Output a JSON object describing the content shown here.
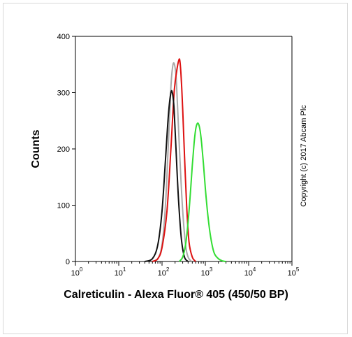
{
  "chart_data": {
    "type": "line",
    "title": "",
    "xlabel": "Calreticulin - Alexa Fluor® 405 (450/50 BP)",
    "ylabel": "Counts",
    "x_scale": "log",
    "xlim": [
      1,
      100000
    ],
    "ylim": [
      0,
      400
    ],
    "x_ticks": [
      {
        "value": 1,
        "base": "10",
        "exp": "0"
      },
      {
        "value": 10,
        "base": "10",
        "exp": "1"
      },
      {
        "value": 100,
        "base": "10",
        "exp": "2"
      },
      {
        "value": 1000,
        "base": "10",
        "exp": "3"
      },
      {
        "value": 10000,
        "base": "10",
        "exp": "4"
      },
      {
        "value": 100000,
        "base": "10",
        "exp": "5"
      }
    ],
    "y_ticks": [
      "0",
      "100",
      "200",
      "300",
      "400"
    ],
    "y_tick_values": [
      0,
      100,
      200,
      300,
      400
    ],
    "grid": false,
    "legend": "none",
    "series": [
      {
        "color": "#aaaaaa",
        "x": [
          60,
          80,
          100,
          120,
          140,
          160,
          175,
          190,
          210,
          230,
          260,
          300,
          350,
          400,
          480
        ],
        "y": [
          0,
          5,
          30,
          100,
          210,
          310,
          345,
          352,
          330,
          270,
          180,
          90,
          30,
          8,
          0
        ]
      },
      {
        "color": "#dd1111",
        "x": [
          60,
          80,
          100,
          130,
          160,
          190,
          220,
          245,
          260,
          280,
          300,
          330,
          370,
          420,
          500,
          600
        ],
        "y": [
          0,
          5,
          25,
          90,
          200,
          300,
          340,
          358,
          355,
          320,
          270,
          190,
          100,
          35,
          8,
          0
        ]
      },
      {
        "color": "#111111",
        "x": [
          40,
          60,
          80,
          100,
          120,
          140,
          160,
          175,
          190,
          210,
          240,
          280,
          330,
          400
        ],
        "y": [
          0,
          5,
          30,
          90,
          180,
          260,
          300,
          298,
          270,
          200,
          110,
          40,
          8,
          0
        ]
      },
      {
        "color": "#33dd33",
        "x": [
          250,
          300,
          350,
          400,
          450,
          500,
          550,
          600,
          650,
          700,
          760,
          820,
          900,
          1000,
          1150,
          1350,
          1600,
          2000,
          2500,
          3000
        ],
        "y": [
          0,
          8,
          30,
          70,
          120,
          170,
          210,
          235,
          245,
          244,
          232,
          210,
          175,
          130,
          80,
          40,
          15,
          5,
          1,
          0
        ]
      }
    ]
  },
  "annotation": {
    "copyright": "Copyright (c) 2017 Abcam Plc"
  }
}
